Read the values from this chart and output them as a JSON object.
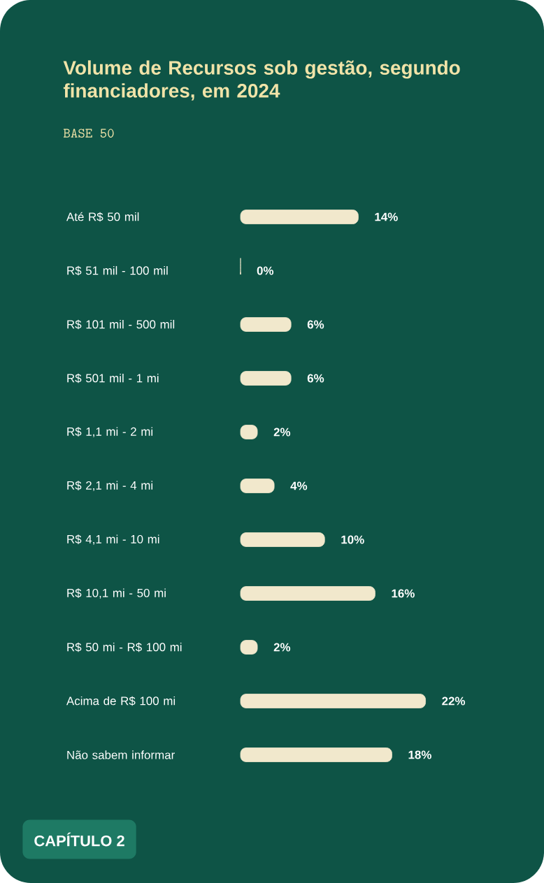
{
  "chart_data": {
    "type": "bar",
    "orientation": "horizontal",
    "title": "Volume de Recursos sob gestão, segundo financiadores, em 2024",
    "subtitle": "BASE  50",
    "categories": [
      "Até R$ 50 mil",
      "R$ 51 mil - 100 mil",
      "R$ 101 mil - 500 mil",
      "R$ 501 mil - 1 mi",
      "R$ 1,1 mi - 2 mi",
      "R$ 2,1 mi - 4 mi",
      "R$ 4,1 mi - 10 mi",
      "R$ 10,1 mi - 50 mi",
      "R$ 50 mi - R$ 100 mi",
      "Acima de R$ 100 mi",
      "Não sabem informar"
    ],
    "values": [
      14,
      0,
      6,
      6,
      2,
      4,
      10,
      16,
      2,
      22,
      18
    ],
    "value_labels": [
      "14%",
      "0%",
      "6%",
      "6%",
      "2%",
      "4%",
      "10%",
      "16%",
      "2%",
      "22%",
      "18%"
    ],
    "color": "#f1e8cc",
    "annotations": [
      "CAPÍTULO 2"
    ]
  }
}
